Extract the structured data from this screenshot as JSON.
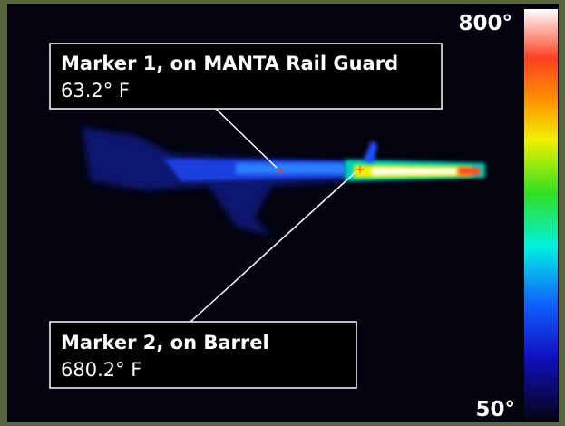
{
  "scale": {
    "max": "800°",
    "min": "50°"
  },
  "markers": [
    {
      "label": "Marker 1, on MANTA Rail Guard",
      "reading": "63.2° F"
    },
    {
      "label": "Marker 2, on Barrel",
      "reading": "680.2° F"
    }
  ]
}
